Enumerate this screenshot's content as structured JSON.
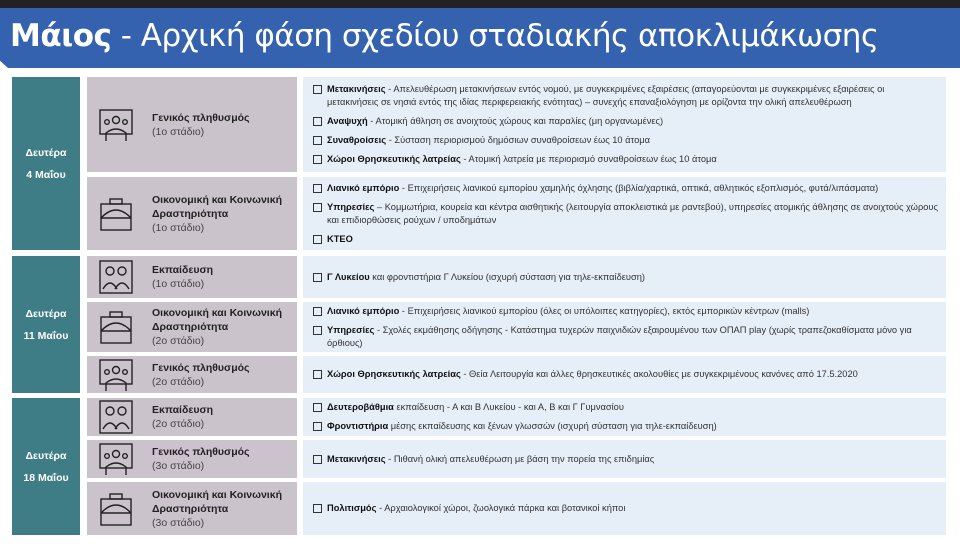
{
  "title": {
    "bold": "Μάιος",
    "rest": " - Αρχική φάση σχεδίου σταδιακής αποκλιμάκωσης"
  },
  "groups": [
    {
      "day": "Δευτέρα",
      "date": "4 Μαΐου",
      "rows": [
        {
          "icon": "people-group-icon",
          "name": "Γενικός πληθυσμός",
          "stage": "(1ο στάδιο)",
          "items": [
            {
              "b": "Μετακινήσεις",
              "t": " - Απελευθέρωση μετακινήσεων εντός νομού, με συγκεκριμένες εξαιρέσεις (απαγορεύονται με συγκεκριμένες εξαιρέσεις οι μετακινήσεις σε νησιά εντός της ιδίας περιφερειακής ενότητας) – συνεχής επαναξιολόγηση με ορίζοντα την ολική απελευθέρωση"
            },
            {
              "b": "Αναψυχή",
              "t": " - Ατομική άθληση σε ανοιχτούς χώρους και παραλίες (μη οργανωμένες)"
            },
            {
              "b": "Συναθροίσεις",
              "t": " - Σύσταση περιορισμού δημόσιων συναθροίσεων έως 10 άτομα"
            },
            {
              "b": "Χώροι Θρησκευτικής λατρείας",
              "t": " - Ατομική λατρεία με περιορισμό συναθροίσεων έως 10 άτομα"
            }
          ]
        },
        {
          "icon": "briefcase-icon",
          "name": "Οικονομική και Κοινωνική Δραστηριότητα",
          "stage": "(1ο στάδιο)",
          "items": [
            {
              "b": "Λιανικό εμπόριο",
              "t": " - Επιχειρήσεις λιανικού εμπορίου χαμηλής όχλησης (βιβλία/χαρτικά, οπτικά, αθλητικός εξοπλισμός, φυτά/λιπάσματα)"
            },
            {
              "b": "Υπηρεσίες",
              "t": " – Κομμωτήρια, κουρεία και κέντρα αισθητικής (λειτουργία αποκλειστικά με ραντεβού), υπηρεσίες ατομικής άθλησης σε ανοιχτούς χώρους και επιδιορθώσεις ρούχων / υποδημάτων"
            },
            {
              "b": "ΚΤΕΟ",
              "t": ""
            }
          ]
        }
      ]
    },
    {
      "day": "Δευτέρα",
      "date": "11 Μαΐου",
      "rows": [
        {
          "icon": "students-icon",
          "name": "Εκπαίδευση",
          "stage": "(1ο στάδιο)",
          "items": [
            {
              "b": "Γ Λυκείου",
              "t": " και φροντιστήρια Γ Λυκείου (ισχυρή σύσταση για τηλε-εκπαίδευση)"
            }
          ]
        },
        {
          "icon": "briefcase-icon",
          "name": "Οικονομική και Κοινωνική Δραστηριότητα",
          "stage": "(2ο στάδιο)",
          "items": [
            {
              "b": "Λιανικό εμπόριο",
              "t": " - Επιχειρήσεις λιανικού εμπορίου (όλες οι υπόλοιπες κατηγορίες), εκτός εμπορικών κέντρων (malls)"
            },
            {
              "b": "Υπηρεσίες",
              "t": " - Σχολές εκμάθησης οδήγησης - Κατάστημα τυχερών παιχνιδιών εξαιρουμένου των ΟΠΑΠ play (χωρίς τραπεζοκαθίσματα μόνο για όρθιους)"
            }
          ]
        },
        {
          "icon": "people-group-icon",
          "name": "Γενικός πληθυσμός",
          "stage": "(2ο στάδιο)",
          "items": [
            {
              "b": "Χώροι Θρησκευτικής λατρείας",
              "t": " - Θεία Λειτουργία και άλλες θρησκευτικές ακολουθίες με συγκεκριμένους κανόνες από 17.5.2020"
            }
          ]
        }
      ]
    },
    {
      "day": "Δευτέρα",
      "date": "18 Μαΐου",
      "rows": [
        {
          "icon": "students-icon",
          "name": "Εκπαίδευση",
          "stage": "(2ο στάδιο)",
          "items": [
            {
              "b": "Δευτεροβάθμια",
              "t": " εκπαίδευση - Α και Β Λυκείου - και Α, Β και Γ Γυμνασίου"
            },
            {
              "b": "Φροντιστήρια",
              "t": " μέσης εκπαίδευσης και ξένων γλωσσών (ισχυρή σύσταση για τηλε-εκπαίδευση)"
            }
          ]
        },
        {
          "icon": "people-group-icon",
          "name": "Γενικός πληθυσμός",
          "stage": "(3ο στάδιο)",
          "items": [
            {
              "b": "Μετακινήσεις",
              "t": " - Πιθανή ολική απελευθέρωση με βάση την πορεία της επιδημίας"
            }
          ]
        },
        {
          "icon": "briefcase-icon",
          "name": "Οικονομική και Κοινωνική Δραστηριότητα",
          "stage": "(3ο στάδιο)",
          "items": [
            {
              "b": "Πολιτισμός",
              "t": " - Αρχαιολογικοί χώροι, ζωολογικά πάρκα και βοτανικοί κήποι"
            }
          ]
        }
      ]
    }
  ],
  "colors": {
    "header": "#3462ae",
    "day": "#3f7d86",
    "category": "#cbc3cc",
    "content": "#e6eef8"
  }
}
